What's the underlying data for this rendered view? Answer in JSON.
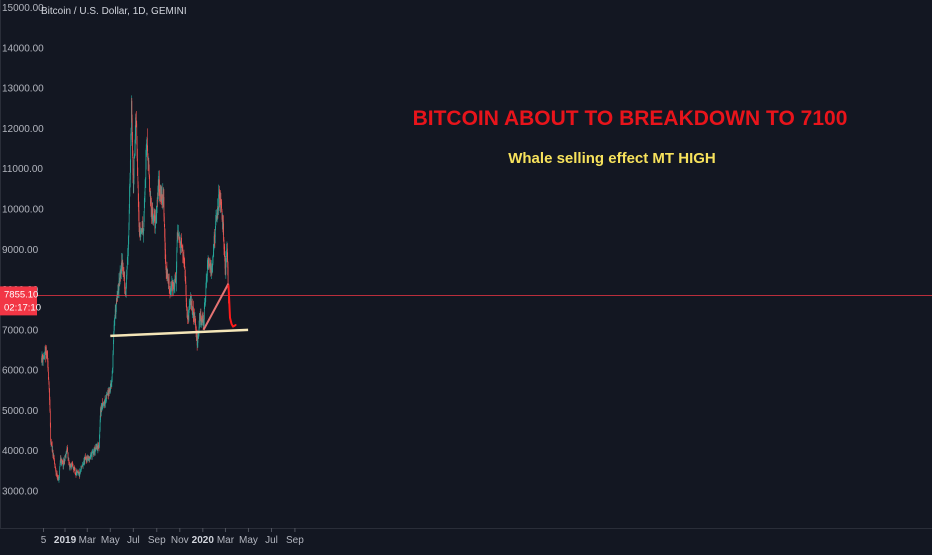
{
  "symbol_label": "Bitcoin / U.S. Dollar, 1D, GEMINI",
  "annotations": {
    "headline": "BITCOIN ABOUT TO BREAKDOWN TO 7100",
    "subheadline": "Whale selling effect MT HIGH"
  },
  "price_badge": {
    "price": "7855.10",
    "countdown": "02:17:10",
    "color": "#f23645"
  },
  "colors": {
    "background": "#131722",
    "up": "#26a69a",
    "down": "#ef5350",
    "support_line": "#f5e6b8",
    "trend_line": "#e57373",
    "projection": "#ff1a1a",
    "price_line": "#f23645"
  },
  "chart_data": {
    "type": "candlestick",
    "y_tick_labels": [
      "15000.00",
      "14000.00",
      "13000.00",
      "12000.00",
      "11000.00",
      "10000.00",
      "9000.00",
      "8000.00",
      "7000.00",
      "6000.00",
      "5000.00",
      "4000.00",
      "3000.00"
    ],
    "y_tick_values": [
      15000,
      14000,
      13000,
      12000,
      11000,
      10000,
      9000,
      8000,
      7000,
      6000,
      5000,
      4000,
      3000
    ],
    "x_tick_labels": [
      "5",
      "2019",
      "Mar",
      "May",
      "Jul",
      "Sep",
      "Nov",
      "2020",
      "Mar",
      "May",
      "Jul",
      "Sep"
    ],
    "x_tick_bold": [
      "2019",
      "2020"
    ],
    "x_tick_dates": [
      "2018-11-05",
      "2019-01-01",
      "2019-03-01",
      "2019-05-01",
      "2019-07-01",
      "2019-09-01",
      "2019-11-01",
      "2020-01-01",
      "2020-03-01",
      "2020-05-01",
      "2020-07-01",
      "2020-09-01"
    ],
    "ylim": [
      2600,
      15000
    ],
    "grid": false,
    "current_price": 7855.1,
    "price_path": [
      {
        "date": "2018-10-31",
        "close": 6300
      },
      {
        "date": "2018-11-14",
        "close": 6400
      },
      {
        "date": "2018-11-20",
        "close": 5600
      },
      {
        "date": "2018-11-24",
        "close": 4200
      },
      {
        "date": "2018-11-29",
        "close": 4000
      },
      {
        "date": "2018-12-07",
        "close": 3500
      },
      {
        "date": "2018-12-15",
        "close": 3250
      },
      {
        "date": "2018-12-20",
        "close": 3800
      },
      {
        "date": "2018-12-27",
        "close": 3650
      },
      {
        "date": "2019-01-07",
        "close": 4050
      },
      {
        "date": "2019-01-12",
        "close": 3600
      },
      {
        "date": "2019-01-20",
        "close": 3650
      },
      {
        "date": "2019-01-29",
        "close": 3450
      },
      {
        "date": "2019-02-08",
        "close": 3400
      },
      {
        "date": "2019-02-17",
        "close": 3650
      },
      {
        "date": "2019-02-24",
        "close": 3800
      },
      {
        "date": "2019-03-05",
        "close": 3800
      },
      {
        "date": "2019-03-20",
        "close": 4000
      },
      {
        "date": "2019-04-01",
        "close": 4100
      },
      {
        "date": "2019-04-05",
        "close": 5000
      },
      {
        "date": "2019-04-20",
        "close": 5300
      },
      {
        "date": "2019-05-05",
        "close": 5700
      },
      {
        "date": "2019-05-12",
        "close": 7300
      },
      {
        "date": "2019-05-25",
        "close": 8200
      },
      {
        "date": "2019-06-02",
        "close": 8700
      },
      {
        "date": "2019-06-10",
        "close": 7900
      },
      {
        "date": "2019-06-18",
        "close": 9300
      },
      {
        "date": "2019-06-26",
        "close": 12500
      },
      {
        "date": "2019-07-01",
        "close": 10600
      },
      {
        "date": "2019-07-08",
        "close": 12300
      },
      {
        "date": "2019-07-17",
        "close": 9400
      },
      {
        "date": "2019-07-28",
        "close": 9600
      },
      {
        "date": "2019-08-06",
        "close": 11800
      },
      {
        "date": "2019-08-15",
        "close": 10100
      },
      {
        "date": "2019-08-28",
        "close": 9600
      },
      {
        "date": "2019-09-05",
        "close": 10600
      },
      {
        "date": "2019-09-19",
        "close": 10200
      },
      {
        "date": "2019-09-25",
        "close": 8500
      },
      {
        "date": "2019-10-06",
        "close": 8000
      },
      {
        "date": "2019-10-22",
        "close": 8200
      },
      {
        "date": "2019-10-25",
        "close": 9300
      },
      {
        "date": "2019-11-04",
        "close": 9200
      },
      {
        "date": "2019-11-12",
        "close": 8700
      },
      {
        "date": "2019-11-22",
        "close": 7200
      },
      {
        "date": "2019-11-29",
        "close": 7700
      },
      {
        "date": "2019-12-10",
        "close": 7300
      },
      {
        "date": "2019-12-17",
        "close": 6700
      },
      {
        "date": "2019-12-24",
        "close": 7300
      },
      {
        "date": "2020-01-03",
        "close": 7200
      },
      {
        "date": "2020-01-14",
        "close": 8700
      },
      {
        "date": "2020-01-24",
        "close": 8500
      },
      {
        "date": "2020-02-01",
        "close": 9300
      },
      {
        "date": "2020-02-08",
        "close": 9900
      },
      {
        "date": "2020-02-13",
        "close": 10300
      },
      {
        "date": "2020-02-22",
        "close": 9800
      },
      {
        "date": "2020-03-01",
        "close": 8500
      },
      {
        "date": "2020-03-05",
        "close": 9000
      },
      {
        "date": "2020-03-07",
        "close": 8600
      },
      {
        "date": "2020-03-09",
        "close": 7855
      }
    ],
    "support_line": {
      "from": {
        "date": "2019-05-01",
        "value": 6850
      },
      "to": {
        "date": "2020-04-30",
        "value": 7000
      }
    },
    "trend_line": {
      "from": {
        "date": "2020-01-03",
        "value": 7000
      },
      "to": {
        "date": "2020-03-09",
        "value": 8150
      }
    },
    "projection": [
      {
        "date": "2020-03-09",
        "value": 8100
      },
      {
        "date": "2020-03-13",
        "value": 7300
      },
      {
        "date": "2020-03-17",
        "value": 7150
      },
      {
        "date": "2020-03-21",
        "value": 7080
      },
      {
        "date": "2020-03-25",
        "value": 7100
      },
      {
        "date": "2020-03-28",
        "value": 7120
      }
    ]
  }
}
